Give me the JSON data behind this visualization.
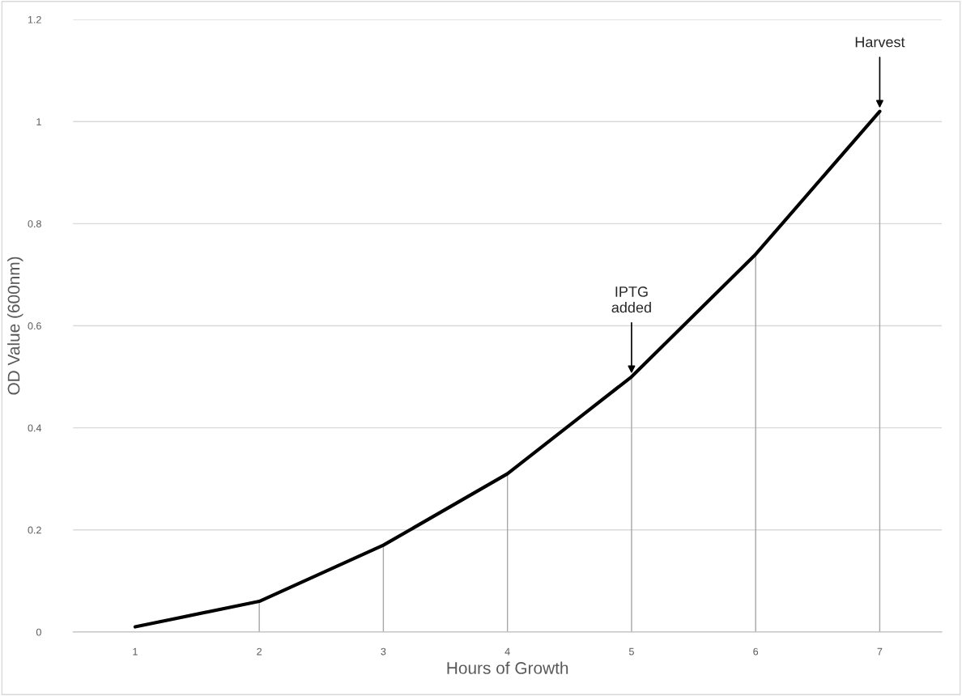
{
  "chart_data": {
    "type": "line",
    "xlabel": "Hours of Growth",
    "ylabel": "OD Value (600nm)",
    "categories": [
      "1",
      "2",
      "3",
      "4",
      "5",
      "6",
      "7"
    ],
    "series": [
      {
        "color": "#000000",
        "values": [
          0.01,
          0.06,
          0.17,
          0.31,
          0.5,
          0.74,
          1.02
        ],
        "errors": [
          null,
          [
            0,
            0.06
          ],
          [
            0,
            0.17
          ],
          [
            0,
            0.31
          ],
          [
            0,
            0.5
          ],
          [
            0,
            0.74
          ],
          [
            0,
            1.02
          ]
        ]
      }
    ],
    "ylim": [
      0,
      1.2
    ],
    "yticks": [
      0,
      0.2,
      0.4,
      0.6,
      0.8,
      1,
      1.2
    ],
    "grid": "y",
    "marker": "none",
    "line_style": "solid",
    "annotations": [
      {
        "text": "IPTG\nadded",
        "x": "5",
        "y": 0.5
      },
      {
        "text": "Harvest",
        "x": "7",
        "y": 1.02
      }
    ]
  }
}
